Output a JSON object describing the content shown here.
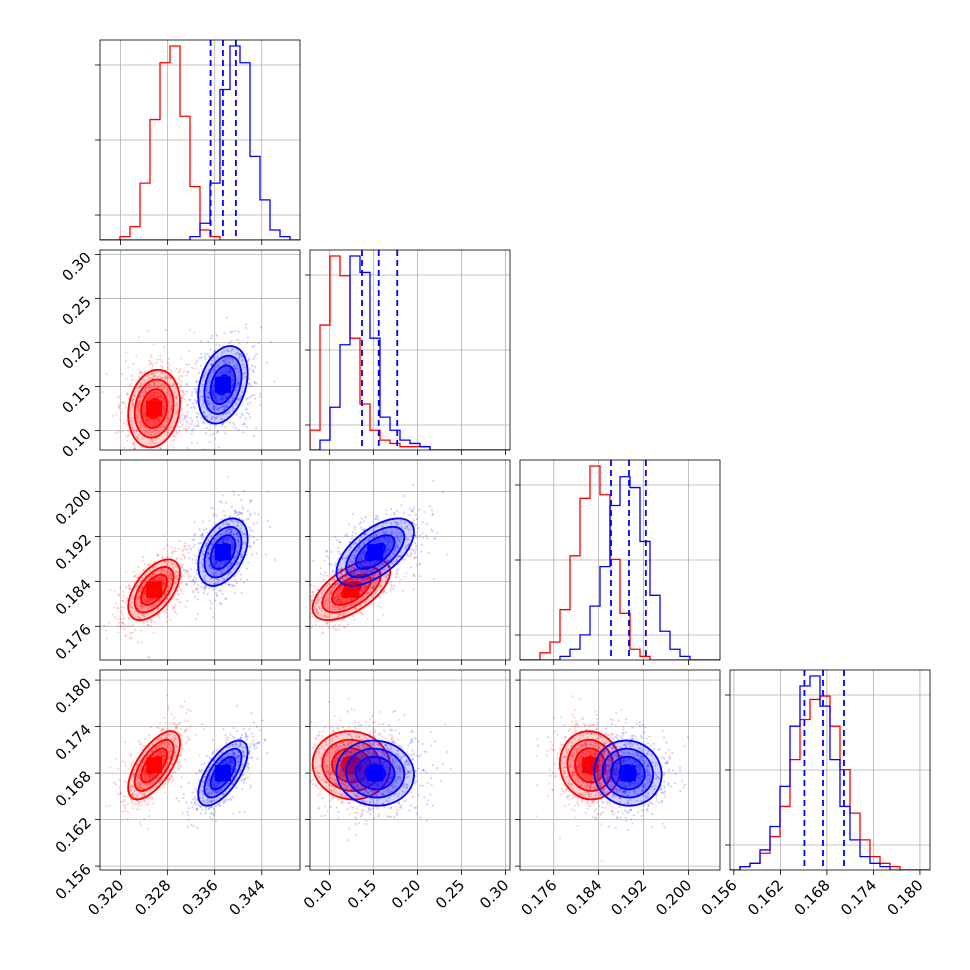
{
  "chart_data": {
    "type": "scatter",
    "subtype": "corner-plot",
    "grid": true,
    "colors": {
      "series_a": "#ff0000",
      "series_b": "#0000ff",
      "grid": "#b0b0b0"
    },
    "parameters": [
      {
        "ticks": [
          0.32,
          0.328,
          0.336,
          0.344
        ],
        "tick_labels": [
          "0.320",
          "0.328",
          "0.336",
          "0.344"
        ],
        "range": [
          0.3165,
          0.3505
        ]
      },
      {
        "ticks": [
          0.1,
          0.15,
          0.2,
          0.25,
          0.3
        ],
        "tick_labels": [
          "0.10",
          "0.15",
          "0.20",
          "0.25",
          "0.30"
        ],
        "range": [
          0.078,
          0.305
        ]
      },
      {
        "ticks": [
          0.176,
          0.184,
          0.192,
          0.2
        ],
        "tick_labels": [
          "0.176",
          "0.184",
          "0.192",
          "0.200"
        ],
        "range": [
          0.17,
          0.2056
        ]
      },
      {
        "ticks": [
          0.156,
          0.162,
          0.168,
          0.174,
          0.18
        ],
        "tick_labels": [
          "0.156",
          "0.162",
          "0.168",
          "0.174",
          "0.180"
        ],
        "range": [
          0.1555,
          0.1813
        ]
      }
    ],
    "series": [
      {
        "color": "#ff0000",
        "means": [
          0.3257,
          0.125,
          0.1825,
          0.169
        ],
        "sigmas": [
          0.0022,
          0.022,
          0.0027,
          0.0022
        ],
        "correlations": {
          "1-0": 0.15,
          "2-0": 0.55,
          "2-1": 0.6,
          "3-0": 0.65,
          "3-1": -0.05,
          "3-2": -0.05
        }
      },
      {
        "color": "#0000ff",
        "means": [
          0.3374,
          0.152,
          0.1892,
          0.168
        ],
        "sigmas": [
          0.0021,
          0.022,
          0.003,
          0.0021
        ],
        "correlations": {
          "1-0": 0.3,
          "2-0": 0.4,
          "2-1": 0.6,
          "3-0": 0.65,
          "3-1": -0.05,
          "3-2": -0.05
        }
      }
    ],
    "histograms_1d": [
      {
        "bins": [
          0.3165,
          0.3505
        ],
        "red": [
          0,
          0,
          1,
          4,
          17,
          36,
          53,
          58,
          37,
          16,
          3,
          1,
          0,
          0,
          0,
          0,
          0,
          0,
          0,
          0
        ],
        "blue": [
          0,
          0,
          0,
          0,
          0,
          0,
          0,
          0,
          0,
          1,
          5,
          17,
          45,
          58,
          53,
          25,
          12,
          3,
          1,
          0
        ]
      },
      {
        "bins": [
          0.078,
          0.305
        ],
        "red": [
          6,
          38,
          59,
          53,
          34,
          14,
          6,
          3,
          2,
          1,
          1,
          1,
          0,
          0,
          0,
          0,
          0,
          0,
          0,
          0
        ],
        "blue": [
          0,
          3,
          13,
          32,
          59,
          54,
          34,
          10,
          6,
          3,
          2,
          1,
          0,
          0,
          0,
          0,
          0,
          0,
          0,
          0
        ]
      },
      {
        "bins": [
          0.17,
          0.2056
        ],
        "red": [
          0,
          0,
          2,
          5,
          14,
          29,
          45,
          54,
          46,
          28,
          13,
          3,
          1,
          0,
          0,
          0,
          0,
          0,
          0,
          0
        ],
        "blue": [
          0,
          0,
          0,
          0,
          1,
          3,
          7,
          15,
          26,
          43,
          51,
          48,
          33,
          18,
          8,
          3,
          1,
          0,
          0,
          0
        ]
      },
      {
        "bins": [
          0.1555,
          0.1813
        ],
        "red": [
          0,
          1,
          2,
          5,
          10,
          19,
          33,
          45,
          51,
          52,
          43,
          30,
          17,
          9,
          4,
          2,
          1,
          0,
          0,
          0
        ],
        "blue": [
          0,
          1,
          2,
          6,
          13,
          25,
          43,
          55,
          58,
          49,
          33,
          19,
          9,
          4,
          2,
          1,
          0,
          0,
          0,
          0
        ]
      }
    ],
    "quantile_lines": [
      [
        0.3353,
        0.3374,
        0.3396
      ],
      [
        0.137,
        0.156,
        0.177
      ],
      [
        0.1862,
        0.1894,
        0.1924
      ],
      [
        0.1651,
        0.1675,
        0.1702
      ]
    ]
  }
}
